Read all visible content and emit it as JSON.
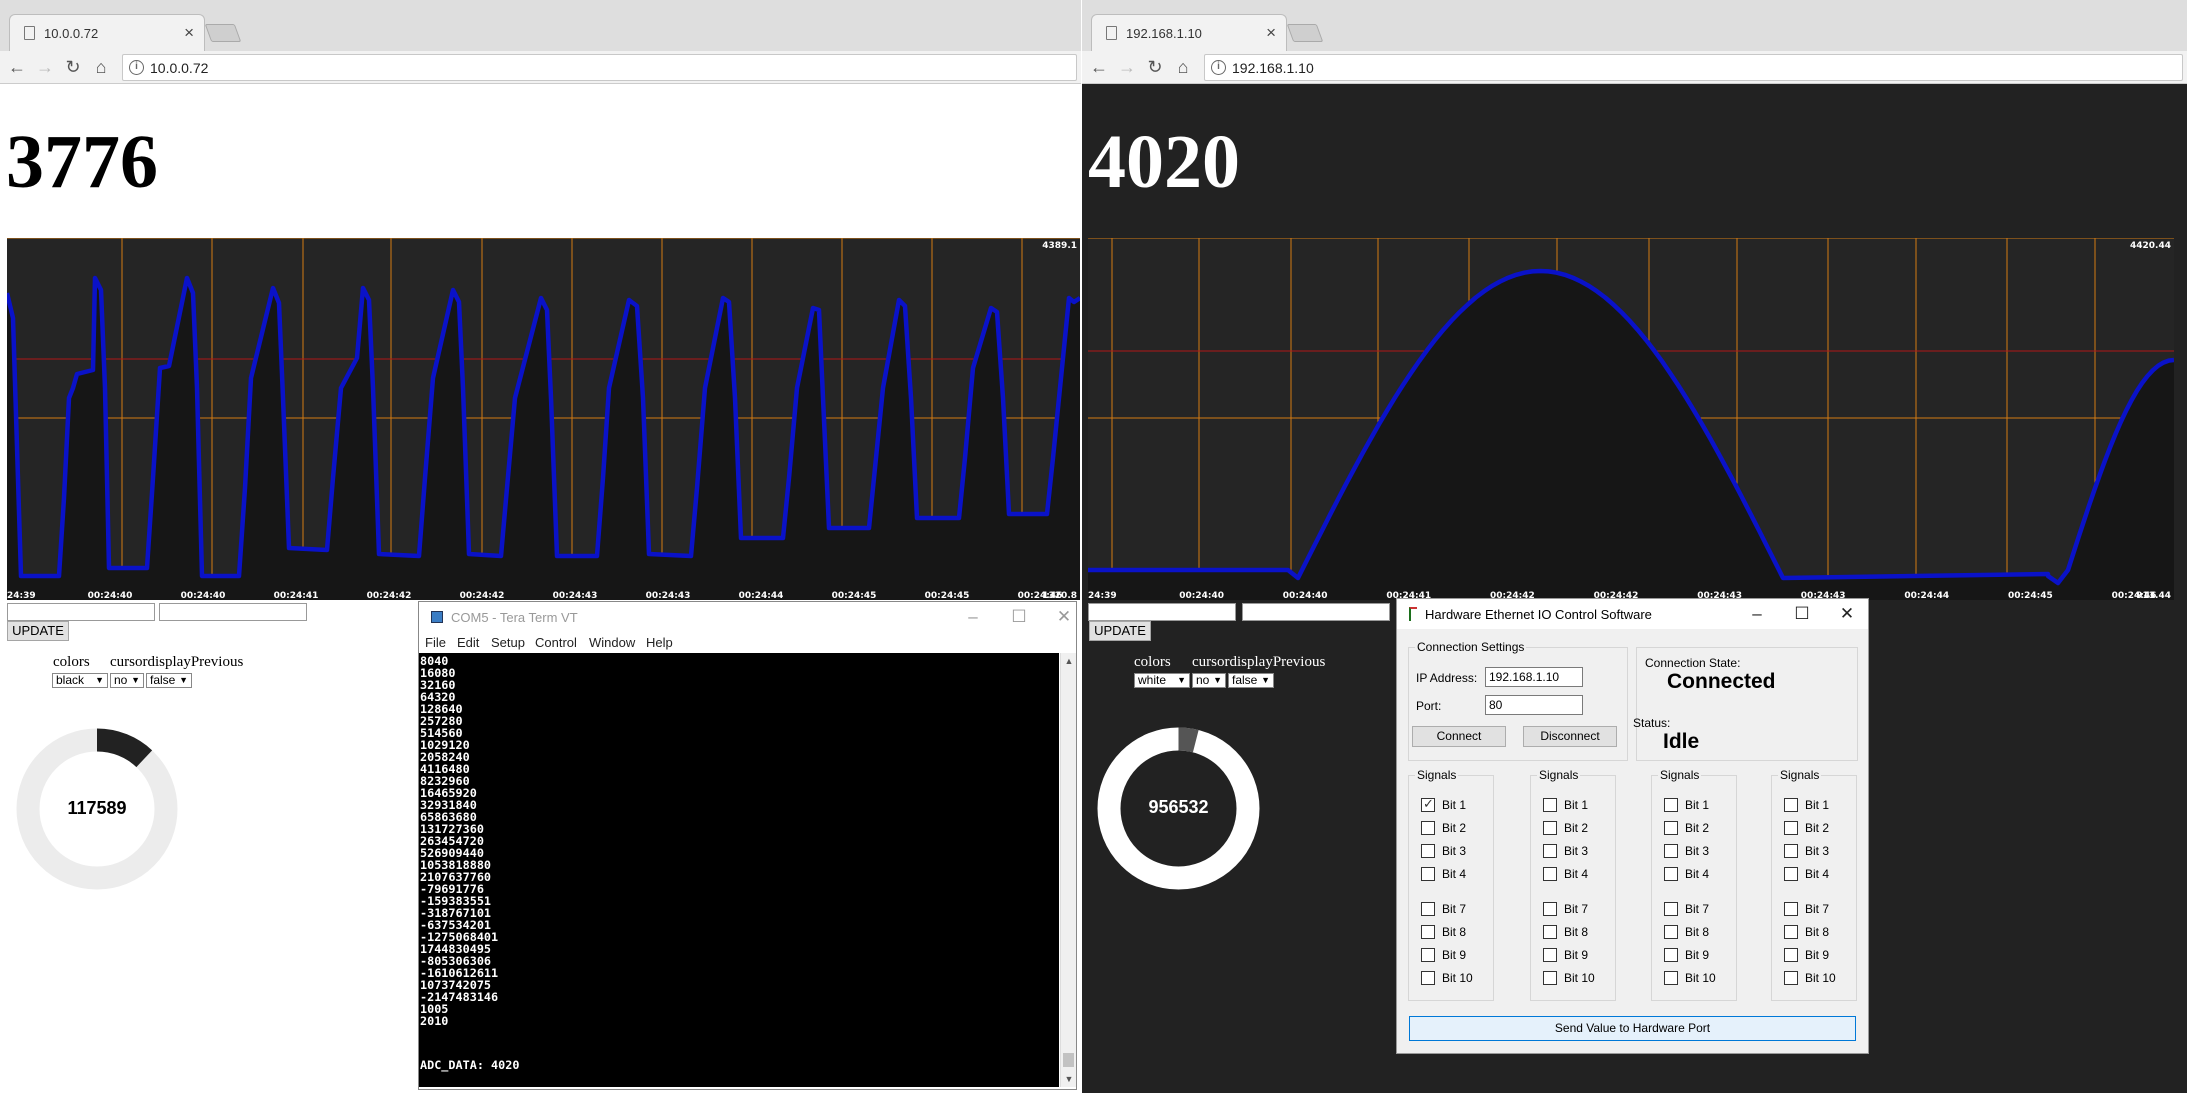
{
  "left": {
    "tab_title": "10.0.0.72",
    "url": "10.0.0.72",
    "big_value": "3776",
    "chart_max_label": "4389.1",
    "chart_min_label": "1320.8",
    "time_labels": [
      "24:39",
      "00:24:40",
      "00:24:40",
      "00:24:41",
      "00:24:42",
      "00:24:42",
      "00:24:43",
      "00:24:43",
      "00:24:44",
      "00:24:45",
      "00:24:45",
      "00:24:46"
    ],
    "update_label": "UPDATE",
    "colors_label": "colors",
    "cursor_label": "cursordisplayPrevious",
    "colors_value": "black",
    "cursor_value": "no",
    "previous_value": "false",
    "donut_value": "117589",
    "donut_fraction": 0.12
  },
  "right": {
    "tab_title": "192.168.1.10",
    "url": "192.168.1.10",
    "big_value": "4020",
    "chart_max_label": "4420.44",
    "chart_min_label": "913.44",
    "time_labels": [
      "24:39",
      "00:24:40",
      "00:24:40",
      "00:24:41",
      "00:24:42",
      "00:24:42",
      "00:24:43",
      "00:24:43",
      "00:24:44",
      "00:24:45",
      "00:24:46"
    ],
    "update_label": "UPDATE",
    "colors_label": "colors",
    "cursor_label": "cursordisplayPrevious",
    "colors_value": "white",
    "cursor_value": "no",
    "previous_value": "false",
    "donut_value": "956532",
    "donut_fraction": 0.04
  },
  "teraterm": {
    "title": "COM5 - Tera Term VT",
    "menu": [
      "File",
      "Edit",
      "Setup",
      "Control",
      "Window",
      "Help"
    ],
    "lines": [
      "8040",
      "16080",
      "32160",
      "64320",
      "128640",
      "257280",
      "514560",
      "1029120",
      "2058240",
      "4116480",
      "8232960",
      "16465920",
      "32931840",
      "65863680",
      "131727360",
      "263454720",
      "526909440",
      "1053818880",
      "2107637760",
      "-79691776",
      "-159383551",
      "-318767101",
      "-637534201",
      "-1275068401",
      "1744830495",
      "-805306306",
      "-1610612611",
      "1073742075",
      "-2147483146",
      "1005",
      "2010"
    ],
    "last_line": "ADC_DATA: 4020"
  },
  "hw": {
    "title": "Hardware Ethernet IO Control Software",
    "conn_settings": "Connection Settings",
    "ip_label": "IP Address:",
    "ip_value": "192.168.1.10",
    "port_label": "Port:",
    "port_value": "80",
    "connect": "Connect",
    "disconnect": "Disconnect",
    "state_label": "Connection State:",
    "state_value": "Connected",
    "status_label": "Status:",
    "status_value": "Idle",
    "signals_label": "Signals",
    "bits": [
      "Bit 1",
      "Bit 2",
      "Bit 3",
      "Bit 4",
      "Bit 7",
      "Bit 8",
      "Bit 9",
      "Bit 10"
    ],
    "checked_bit": "Bit 1",
    "send": "Send Value to Hardware Port"
  },
  "colors": {
    "trace": "#0a12c8",
    "grid_orange": "#d47a14",
    "ref_red": "#b01818",
    "chart_bg": "#252525"
  }
}
